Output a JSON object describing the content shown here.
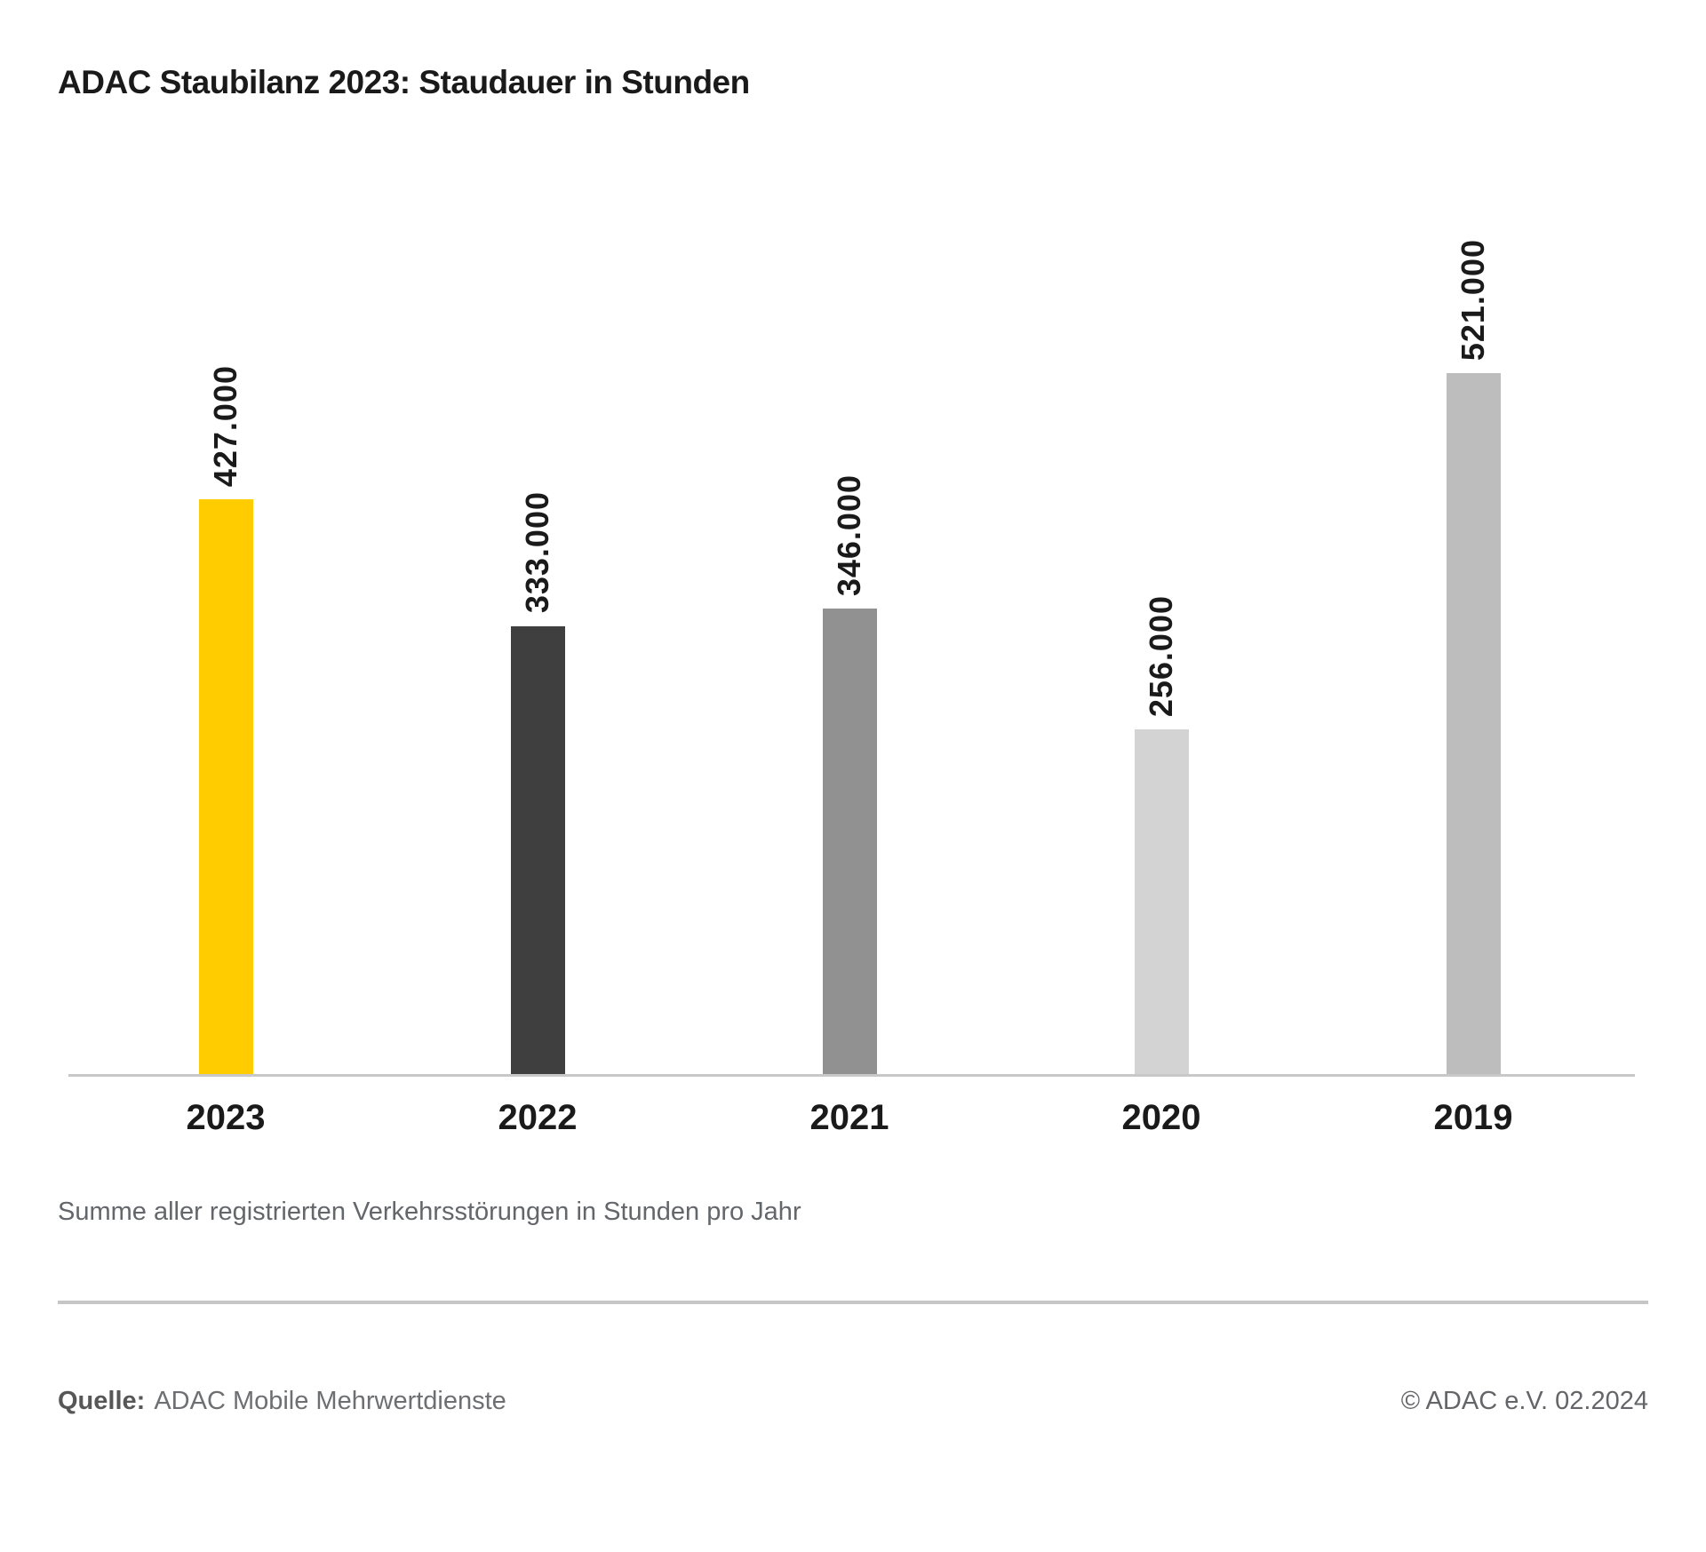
{
  "chart_data": {
    "type": "bar",
    "title": "ADAC Staubilanz 2023: Staudauer in Stunden",
    "categories": [
      "2023",
      "2022",
      "2021",
      "2020",
      "2019"
    ],
    "values": [
      427000,
      333000,
      346000,
      256000,
      521000
    ],
    "value_labels": [
      "427.000",
      "333.000",
      "346.000",
      "256.000",
      "521.000"
    ],
    "bar_colors": [
      "#FFCC00",
      "#3F3F3F",
      "#919191",
      "#D3D3D3",
      "#BDBDBD"
    ],
    "caption": "Summe aller registrierten Verkehrsstörungen in Stunden pro Jahr",
    "xlabel": "",
    "ylabel": "",
    "grid": false,
    "y_axis_visible": false,
    "value_labels_rotated": true,
    "legend_position": "none"
  },
  "footer": {
    "source_label": "Quelle:",
    "source_value": "ADAC Mobile Mehrwertdienste",
    "copyright": "© ADAC e.V. 02.2024"
  },
  "colors": {
    "accent_yellow": "#FFCC00",
    "axis_line": "#C8C8C8",
    "text_dark": "#1A1A1A",
    "text_gray": "#63666A"
  }
}
